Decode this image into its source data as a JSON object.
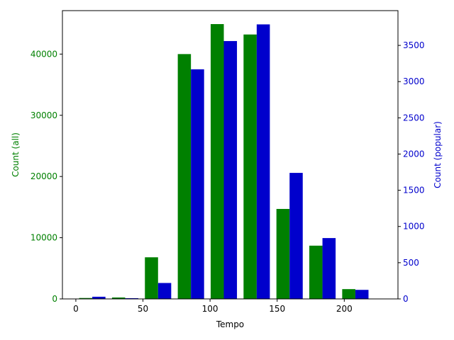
{
  "chart_data": {
    "type": "bar",
    "xlabel": "Tempo",
    "xlim": [
      -10,
      240
    ],
    "x_ticks": [
      0,
      50,
      100,
      150,
      200
    ],
    "bin_width": 24.5,
    "bin_centers": [
      12.25,
      36.75,
      61.25,
      85.75,
      110.25,
      134.75,
      159.25,
      183.75,
      208.25
    ],
    "series": [
      {
        "name": "all",
        "axis": "left",
        "axis_label": "Count (all)",
        "color": "#008000",
        "ylim": [
          0,
          47100
        ],
        "y_ticks": [
          0,
          10000,
          20000,
          30000,
          40000
        ],
        "values": [
          150,
          230,
          6800,
          40000,
          44900,
          43200,
          14700,
          8700,
          1600
        ]
      },
      {
        "name": "popular",
        "axis": "right",
        "axis_label": "Count (popular)",
        "color": "#0000cc",
        "ylim": [
          0,
          3980
        ],
        "y_ticks": [
          0,
          500,
          1000,
          1500,
          2000,
          2500,
          3000,
          3500
        ],
        "values": [
          30,
          10,
          220,
          3170,
          3560,
          3790,
          1740,
          840,
          125
        ]
      }
    ]
  }
}
